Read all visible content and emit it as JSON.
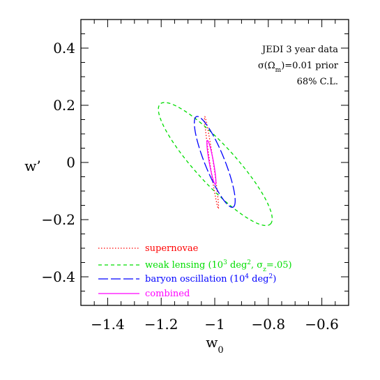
{
  "chart_data": {
    "type": "line",
    "xlabel": "w",
    "xlabel_sub": "0",
    "ylabel": "w’",
    "xlim": [
      -1.5,
      -0.5
    ],
    "ylim": [
      -0.5,
      0.5
    ],
    "x_ticks": [
      -1.4,
      -1.2,
      -1.0,
      -0.8,
      -0.6
    ],
    "x_tick_labels": [
      "−1.4",
      "−1.2",
      "−1",
      "−0.8",
      "−0.6"
    ],
    "y_ticks": [
      0.4,
      0.2,
      0.0,
      -0.2,
      -0.4
    ],
    "y_tick_labels": [
      "0.4",
      "0.2",
      "0",
      "−0.2",
      "−0.4"
    ],
    "grid": false,
    "legend_position": "bottom-left",
    "annotation": {
      "line1": "JEDI 3 year data",
      "line2_prefix": "σ(Ω",
      "line2_sub": "m",
      "line2_suffix": ")=0.01 prior",
      "line3": "68% C.L."
    },
    "series": [
      {
        "name": "supernovae",
        "color": "#ff0000",
        "dash": "1.5,2.5",
        "ellipse": {
          "cx": -1.012,
          "cy": 0.0,
          "a": 0.1625,
          "b": 0.0065,
          "angle": -81
        }
      },
      {
        "name_prefix": "weak lensing (10",
        "name_sup": "3",
        "name_mid": " deg",
        "name_sup2": "2",
        "name_mid2": ", σ",
        "name_sub": "z",
        "name_suffix": "=.05)",
        "color": "#00dd00",
        "dash": "5,4",
        "ellipse": {
          "cx": -0.998,
          "cy": -0.0055,
          "a": 0.294,
          "b": 0.071,
          "angle": -45.4
        }
      },
      {
        "name_prefix": "baryon oscillation (10",
        "name_sup": "4",
        "name_mid": " deg",
        "name_sup2": "2",
        "name_suffix": ")",
        "color": "#0000ff",
        "dash": "14,4",
        "ellipse": {
          "cx": -1.0,
          "cy": 0.002,
          "a": 0.1725,
          "b": 0.0365,
          "angle": -66.6
        }
      },
      {
        "name": "combined",
        "color": "#ff00ff",
        "dash": "",
        "ellipse": {
          "cx": -1.0125,
          "cy": 0.0,
          "a": 0.0784,
          "b": 0.0079,
          "angle": -79
        }
      }
    ]
  }
}
